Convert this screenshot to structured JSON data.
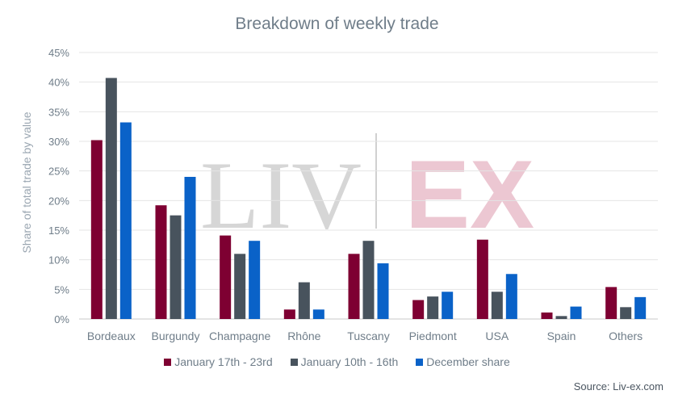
{
  "chart_data": {
    "type": "bar",
    "title": "Breakdown of weekly trade",
    "xlabel": "",
    "ylabel": "Share of total trade by value",
    "ylim": [
      0,
      45
    ],
    "yticks": [
      "0%",
      "5%",
      "10%",
      "15%",
      "20%",
      "25%",
      "30%",
      "35%",
      "40%",
      "45%"
    ],
    "categories": [
      "Bordeaux",
      "Burgundy",
      "Champagne",
      "Rhône",
      "Tuscany",
      "Piedmont",
      "USA",
      "Spain",
      "Others"
    ],
    "series": [
      {
        "name": "January 17th - 23rd",
        "color": "#7e0032",
        "values": [
          30.2,
          19.2,
          14.1,
          1.6,
          11.0,
          3.2,
          13.4,
          1.1,
          5.4
        ]
      },
      {
        "name": "January 10th - 16th",
        "color": "#48535d",
        "values": [
          40.7,
          17.5,
          11.0,
          6.2,
          13.2,
          3.8,
          4.6,
          0.5,
          2.0
        ]
      },
      {
        "name": "December share",
        "color": "#0a62c8",
        "values": [
          33.2,
          24.0,
          13.2,
          1.6,
          9.4,
          4.6,
          7.6,
          2.1,
          3.7
        ]
      }
    ],
    "grid": true,
    "legend_position": "bottom"
  },
  "watermark": {
    "left": "LIV",
    "right": "EX"
  },
  "source": "Source: Liv-ex.com"
}
